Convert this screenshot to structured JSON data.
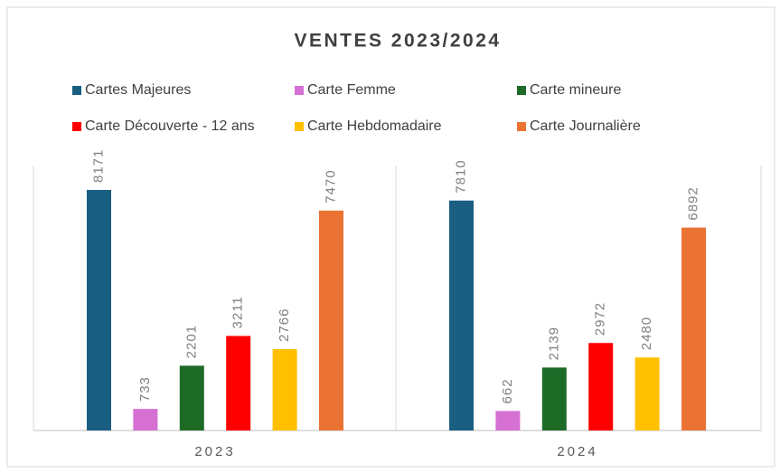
{
  "chart_data": {
    "type": "bar",
    "title": "VENTES 2023/2024",
    "categories": [
      "2023",
      "2024"
    ],
    "series": [
      {
        "name": "Cartes Majeures",
        "color": "#1a5f82",
        "values": [
          8171,
          7810
        ]
      },
      {
        "name": "Carte  Femme",
        "color": "#d670d2",
        "values": [
          733,
          662
        ]
      },
      {
        "name": "Carte  mineure",
        "color": "#1e6b28",
        "values": [
          2201,
          2139
        ]
      },
      {
        "name": "Carte Découverte - 12 ans",
        "color": "#ff0000",
        "values": [
          3211,
          2972
        ]
      },
      {
        "name": "Carte Hebdomadaire",
        "color": "#ffc000",
        "values": [
          2766,
          2480
        ]
      },
      {
        "name": "Carte Journalière",
        "color": "#ea7334",
        "values": [
          7470,
          6892
        ]
      }
    ]
  }
}
